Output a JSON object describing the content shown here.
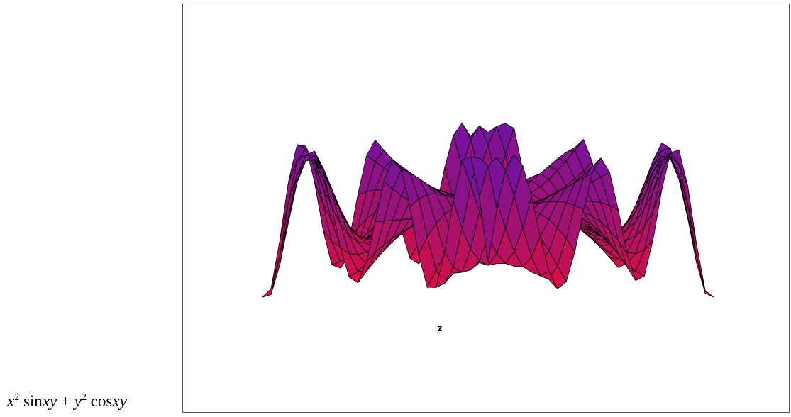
{
  "expression": {
    "base1": "x",
    "exp1": "2",
    "rest1": "sin",
    "arg1": "xy",
    "plus": "+",
    "base2": "y",
    "exp2": "2",
    "rest2": "cos",
    "arg2": "xy"
  },
  "plot": {
    "axis_label": "z"
  }
}
